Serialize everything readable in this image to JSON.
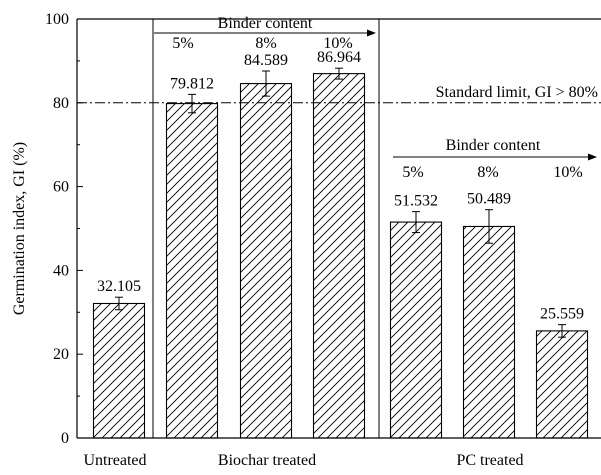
{
  "chart_data": {
    "type": "bar",
    "ylabel": "Germination index, GI (%)",
    "ylim": [
      0,
      100
    ],
    "yticks": [
      0,
      20,
      40,
      60,
      80,
      100
    ],
    "grid": false,
    "bars": [
      {
        "group": "Untreated",
        "label": "32.105",
        "value": 32.105,
        "error": 1.5
      },
      {
        "group": "Biochar treated",
        "binder": "5%",
        "label": "79.812",
        "value": 79.812,
        "error": 2.2
      },
      {
        "group": "Biochar treated",
        "binder": "8%",
        "label": "84.589",
        "value": 84.589,
        "error": 3.0
      },
      {
        "group": "Biochar treated",
        "binder": "10%",
        "label": "86.964",
        "value": 86.964,
        "error": 1.3
      },
      {
        "group": "PC treated",
        "binder": "5%",
        "label": "51.532",
        "value": 51.532,
        "error": 2.5
      },
      {
        "group": "PC treated",
        "binder": "8%",
        "label": "50.489",
        "value": 50.489,
        "error": 4.0
      },
      {
        "group": "PC treated",
        "binder": "10%",
        "label": "25.559",
        "value": 25.559,
        "error": 1.5
      }
    ],
    "group_labels": [
      "Untreated",
      "Biochar treated",
      "PC treated"
    ],
    "reference_line": {
      "value": 80,
      "label": "Standard limit, GI > 80%",
      "style": "dash-dot"
    },
    "annotations": {
      "biochar_arrow_label": "Binder content",
      "pc_arrow_label": "Binder content",
      "biochar_binder_labels": [
        "5%",
        "8%",
        "10%"
      ],
      "pc_binder_labels": [
        "5%",
        "8%",
        "10%"
      ]
    }
  },
  "colors": {
    "axis": "#000000",
    "bar_fill": "#ffffff",
    "hatch": "#000000",
    "background": "#ffffff"
  }
}
